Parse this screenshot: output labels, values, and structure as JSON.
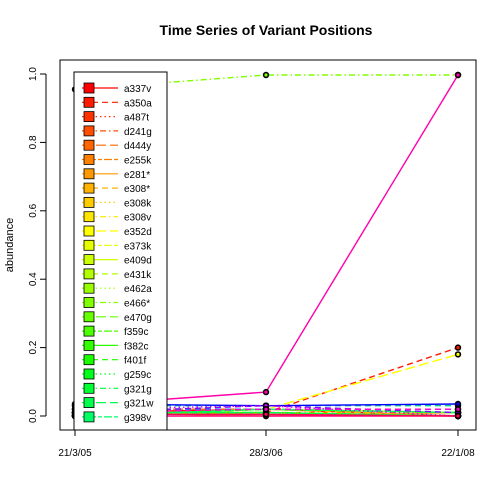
{
  "chart_data": {
    "type": "line",
    "title": "Time Series of Variant Positions",
    "xlabel": "",
    "ylabel": "abundance",
    "categories": [
      "21/3/05",
      "28/3/06",
      "22/1/08"
    ],
    "yticks": [
      "0.0",
      "0.2",
      "0.4",
      "0.6",
      "0.8",
      "1.0"
    ],
    "ylim": [
      0,
      1
    ],
    "grid": false,
    "legend_position": "top-left",
    "series": [
      {
        "name": "a337v",
        "color": "#FF0000",
        "dash": "solid",
        "values": [
          0.01,
          0.02,
          0.0
        ]
      },
      {
        "name": "a350a",
        "color": "#FF1A00",
        "dash": "dashed",
        "values": [
          0.0,
          0.01,
          0.2
        ]
      },
      {
        "name": "a487t",
        "color": "#FF3300",
        "dash": "dotted",
        "values": [
          0.0,
          0.01,
          0.0
        ]
      },
      {
        "name": "d241g",
        "color": "#FF4D00",
        "dash": "dotdash",
        "values": [
          0.01,
          0.01,
          0.01
        ]
      },
      {
        "name": "d444y",
        "color": "#FF6600",
        "dash": "longdash",
        "values": [
          0.02,
          0.02,
          0.01
        ]
      },
      {
        "name": "e255k",
        "color": "#FF8000",
        "dash": "twodash",
        "values": [
          0.0,
          0.01,
          0.0
        ]
      },
      {
        "name": "e281*",
        "color": "#FF9900",
        "dash": "solid",
        "values": [
          0.01,
          0.0,
          0.01
        ]
      },
      {
        "name": "e308*",
        "color": "#FFB300",
        "dash": "dashed",
        "values": [
          0.0,
          0.02,
          0.0
        ]
      },
      {
        "name": "e308k",
        "color": "#FFCC00",
        "dash": "dotted",
        "values": [
          0.01,
          0.01,
          0.01
        ]
      },
      {
        "name": "e308v",
        "color": "#FFE500",
        "dash": "dotdash",
        "values": [
          0.0,
          0.01,
          0.0
        ]
      },
      {
        "name": "e352d",
        "color": "#FFFF00",
        "dash": "longdash",
        "values": [
          0.0,
          0.02,
          0.18
        ]
      },
      {
        "name": "e373k",
        "color": "#E6FF00",
        "dash": "twodash",
        "values": [
          0.01,
          0.01,
          0.0
        ]
      },
      {
        "name": "e409d",
        "color": "#CCFF00",
        "dash": "solid",
        "values": [
          0.0,
          0.02,
          0.01
        ]
      },
      {
        "name": "e431k",
        "color": "#B3FF00",
        "dash": "dashed",
        "values": [
          0.01,
          0.01,
          0.0
        ]
      },
      {
        "name": "e462a",
        "color": "#99FF00",
        "dash": "dotted",
        "values": [
          0.0,
          0.02,
          0.01
        ]
      },
      {
        "name": "e466*",
        "color": "#80FF00",
        "dash": "dotdash",
        "values": [
          0.955,
          0.997,
          0.997
        ]
      },
      {
        "name": "e470g",
        "color": "#66FF00",
        "dash": "longdash",
        "values": [
          0.01,
          0.01,
          0.0
        ]
      },
      {
        "name": "f359c",
        "color": "#4DFF00",
        "dash": "twodash",
        "values": [
          0.0,
          0.02,
          0.01
        ]
      },
      {
        "name": "f382c",
        "color": "#33FF00",
        "dash": "solid",
        "values": [
          0.01,
          0.01,
          0.0
        ]
      },
      {
        "name": "f401f",
        "color": "#1AFF00",
        "dash": "dashed",
        "values": [
          0.0,
          0.02,
          0.01
        ]
      },
      {
        "name": "g259c",
        "color": "#00FF1A",
        "dash": "dotted",
        "values": [
          0.01,
          0.01,
          0.0
        ]
      },
      {
        "name": "g321g",
        "color": "#00FF33",
        "dash": "dotdash",
        "values": [
          0.0,
          0.02,
          0.01
        ]
      },
      {
        "name": "g321w",
        "color": "#00FF4D",
        "dash": "longdash",
        "values": [
          0.01,
          0.01,
          0.0
        ]
      },
      {
        "name": "g398v",
        "color": "#00FF66",
        "dash": "twodash",
        "values": [
          0.0,
          0.02,
          0.01
        ]
      },
      {
        "name": "",
        "color": "#00CC99",
        "dash": "dashed",
        "values": [
          0.03,
          0.03,
          0.03
        ]
      },
      {
        "name": "",
        "color": "#0088FF",
        "dash": "dashed",
        "values": [
          0.02,
          0.02,
          0.02
        ]
      },
      {
        "name": "",
        "color": "#0000FF",
        "dash": "solid",
        "values": [
          0.035,
          0.03,
          0.035
        ]
      },
      {
        "name": "",
        "color": "#8800FF",
        "dash": "dashed",
        "values": [
          0.01,
          0.03,
          0.01
        ]
      },
      {
        "name": "",
        "color": "#CC00FF",
        "dash": "dotted",
        "values": [
          0.02,
          0.03,
          0.0
        ]
      },
      {
        "name": "",
        "color": "#FF00CC",
        "dash": "dashed",
        "values": [
          0.01,
          0.02,
          0.02
        ]
      },
      {
        "name": "",
        "color": "#FF00AA",
        "dash": "solid",
        "values": [
          0.03,
          0.07,
          0.997
        ]
      },
      {
        "name": "",
        "color": "#FF0080",
        "dash": "solid",
        "values": [
          0.0,
          0.0,
          0.0
        ]
      },
      {
        "name": "",
        "color": "#FF0055",
        "dash": "solid",
        "values": [
          0.005,
          0.005,
          0.0
        ]
      }
    ]
  }
}
